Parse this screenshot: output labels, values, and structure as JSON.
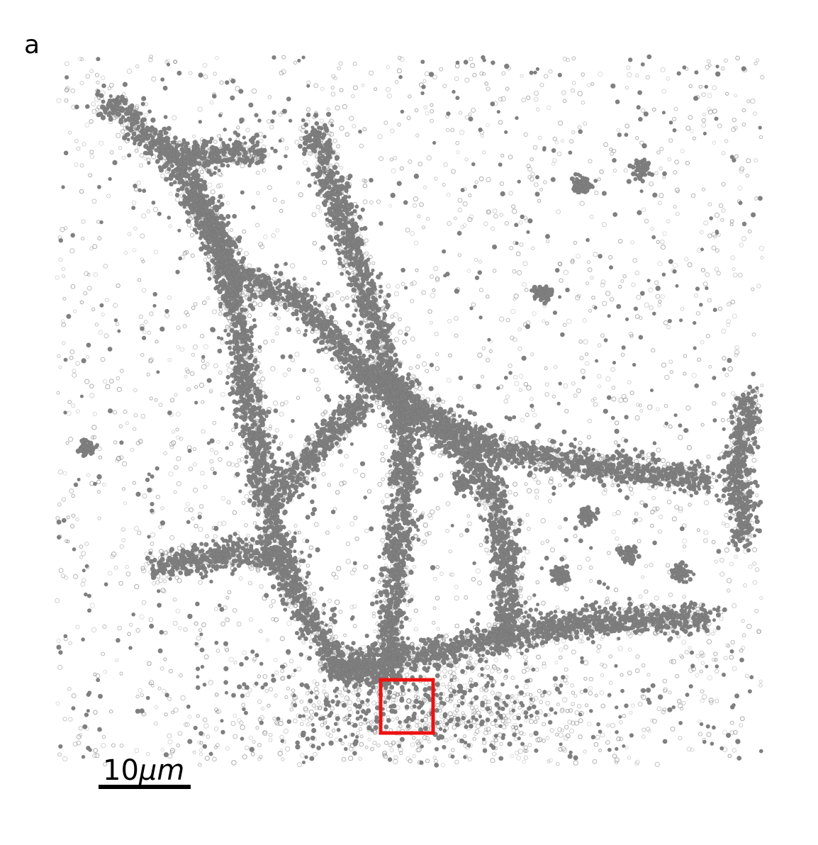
{
  "panel": {
    "label": "a"
  },
  "scale_bar": {
    "number": "10",
    "unit": "μm"
  }
}
